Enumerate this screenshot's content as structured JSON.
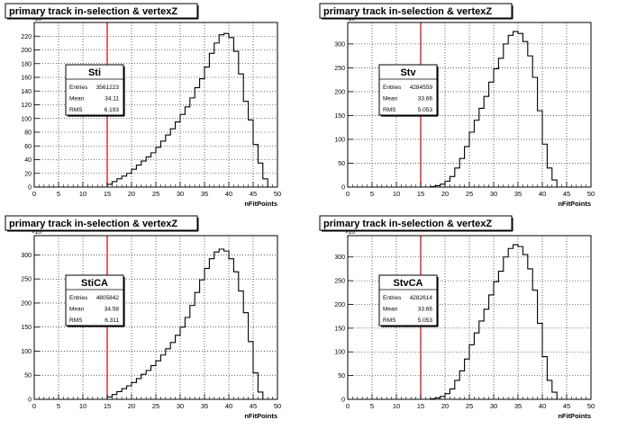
{
  "chart_data": [
    {
      "type": "bar",
      "title": "primary track  in-selection & vertexZ",
      "xlabel": "nFitPoints",
      "y_multiplier": "×10",
      "xlim": [
        0,
        50
      ],
      "ylim": [
        0,
        240
      ],
      "x_ticks": [
        "0",
        "5",
        "10",
        "15",
        "20",
        "25",
        "30",
        "35",
        "40",
        "45",
        "50"
      ],
      "y_ticks": [
        "0",
        "20",
        "40",
        "60",
        "80",
        "100",
        "120",
        "140",
        "160",
        "180",
        "200",
        "220"
      ],
      "bin_width": 1,
      "values": [
        0,
        0,
        0,
        0,
        0,
        0,
        0,
        0,
        0,
        0,
        0,
        0,
        0,
        0,
        0,
        4,
        8,
        12,
        16,
        20,
        26,
        32,
        38,
        44,
        50,
        58,
        67,
        76,
        85,
        95,
        106,
        117,
        130,
        145,
        158,
        175,
        195,
        210,
        222,
        224,
        218,
        198,
        165,
        125,
        98,
        62,
        35,
        12,
        0,
        0
      ],
      "cut_line_x": 15,
      "stats": {
        "name": "Sti",
        "rows": [
          {
            "label": "Entries",
            "value": "3561223"
          },
          {
            "label": "Mean",
            "value": "34.11"
          },
          {
            "label": "RMS",
            "value": "6.193"
          }
        ]
      },
      "grid": true,
      "stats_box_position": "upper-left"
    },
    {
      "type": "bar",
      "title": "primary track  in-selection & vertexZ",
      "xlabel": "nFitPoints",
      "y_multiplier": "×10",
      "xlim": [
        0,
        50
      ],
      "ylim": [
        0,
        345
      ],
      "x_ticks": [
        "0",
        "5",
        "10",
        "15",
        "20",
        "25",
        "30",
        "35",
        "40",
        "45",
        "50"
      ],
      "y_ticks": [
        "0",
        "50",
        "100",
        "150",
        "200",
        "250",
        "300"
      ],
      "bin_width": 1,
      "values": [
        0,
        0,
        0,
        0,
        0,
        0,
        0,
        0,
        0,
        0,
        0,
        0,
        0,
        0,
        0,
        0,
        0,
        1,
        3,
        6,
        12,
        22,
        40,
        60,
        85,
        115,
        140,
        165,
        190,
        220,
        248,
        270,
        300,
        318,
        326,
        322,
        305,
        275,
        230,
        160,
        90,
        40,
        15,
        0,
        0,
        0,
        0,
        0,
        0,
        0
      ],
      "cut_line_x": 15,
      "stats": {
        "name": "Stv",
        "rows": [
          {
            "label": "Entries",
            "value": "4284559"
          },
          {
            "label": "Mean",
            "value": "33.66"
          },
          {
            "label": "RMS",
            "value": "5.053"
          }
        ]
      },
      "grid": true,
      "stats_box_position": "upper-left"
    },
    {
      "type": "bar",
      "title": "primary track  in-selection & vertexZ",
      "xlabel": "nFitPoints",
      "y_multiplier": "×10",
      "xlim": [
        0,
        50
      ],
      "ylim": [
        0,
        340
      ],
      "x_ticks": [
        "0",
        "5",
        "10",
        "15",
        "20",
        "25",
        "30",
        "35",
        "40",
        "45",
        "50"
      ],
      "y_ticks": [
        "0",
        "50",
        "100",
        "150",
        "200",
        "250",
        "300"
      ],
      "bin_width": 1,
      "values": [
        0,
        0,
        0,
        0,
        0,
        0,
        0,
        0,
        0,
        0,
        0,
        0,
        0,
        0,
        0,
        5,
        10,
        16,
        22,
        28,
        35,
        43,
        52,
        60,
        70,
        80,
        92,
        105,
        118,
        133,
        150,
        170,
        195,
        222,
        248,
        272,
        292,
        306,
        312,
        308,
        292,
        265,
        225,
        180,
        120,
        55,
        15,
        0,
        0,
        0
      ],
      "cut_line_x": 15,
      "stats": {
        "name": "StiCA",
        "rows": [
          {
            "label": "Entries",
            "value": "4805842"
          },
          {
            "label": "Mean",
            "value": "34.58"
          },
          {
            "label": "RMS",
            "value": "6.311"
          }
        ]
      },
      "grid": true,
      "stats_box_position": "upper-left"
    },
    {
      "type": "bar",
      "title": "primary track  in-selection & vertexZ",
      "xlabel": "nFitPoints",
      "y_multiplier": "×10",
      "xlim": [
        0,
        50
      ],
      "ylim": [
        0,
        345
      ],
      "x_ticks": [
        "0",
        "5",
        "10",
        "15",
        "20",
        "25",
        "30",
        "35",
        "40",
        "45",
        "50"
      ],
      "y_ticks": [
        "0",
        "50",
        "100",
        "150",
        "200",
        "250",
        "300"
      ],
      "bin_width": 1,
      "values": [
        0,
        0,
        0,
        0,
        0,
        0,
        0,
        0,
        0,
        0,
        0,
        0,
        0,
        0,
        0,
        0,
        0,
        1,
        3,
        6,
        12,
        22,
        40,
        60,
        85,
        115,
        140,
        165,
        190,
        220,
        248,
        270,
        300,
        318,
        326,
        322,
        305,
        275,
        230,
        160,
        90,
        40,
        15,
        0,
        0,
        0,
        0,
        0,
        0,
        0
      ],
      "cut_line_x": 15,
      "stats": {
        "name": "StvCA",
        "rows": [
          {
            "label": "Entries",
            "value": "4282614"
          },
          {
            "label": "Mean",
            "value": "33.66"
          },
          {
            "label": "RMS",
            "value": "5.053"
          }
        ]
      },
      "grid": true,
      "stats_box_position": "upper-left"
    }
  ]
}
